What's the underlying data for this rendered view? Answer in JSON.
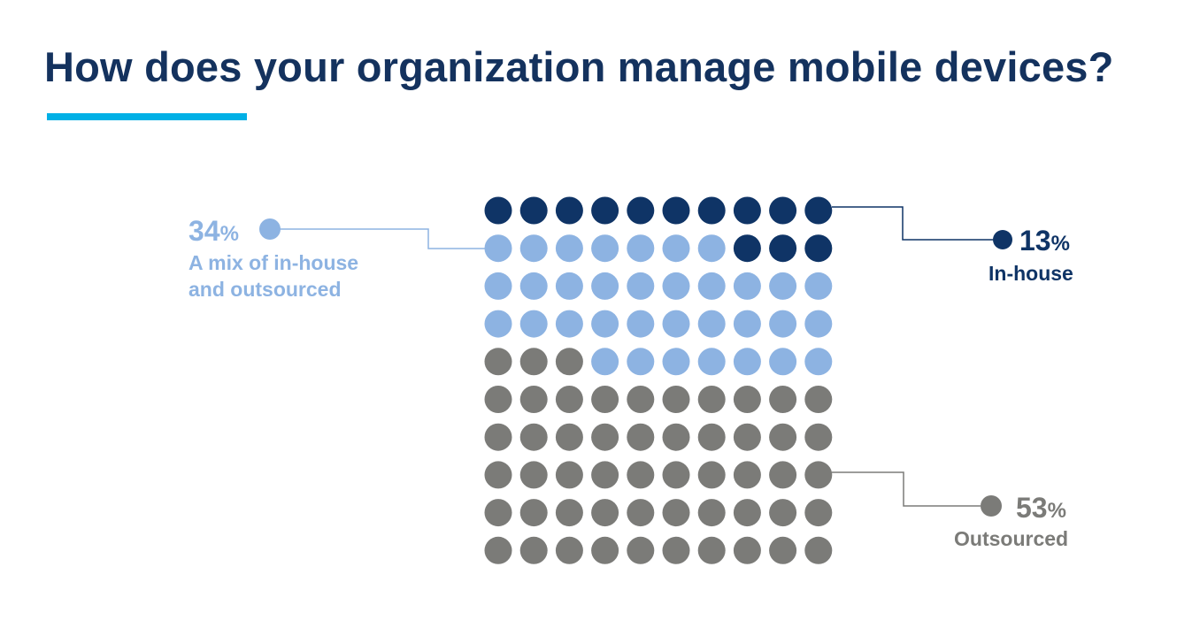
{
  "chart_data": {
    "type": "waffle",
    "title": "How does your organization manage mobile devices?",
    "grid": {
      "rows": 10,
      "cols": 10
    },
    "series": [
      {
        "name": "In-house",
        "value": 13,
        "label": "13",
        "unit": "%",
        "color": "#0f3466"
      },
      {
        "name": "A mix of in-house and outsourced",
        "value": 34,
        "label": "34",
        "unit": "%",
        "label_lines": [
          "A mix of in-house",
          "and outsourced"
        ],
        "color": "#8db3e2"
      },
      {
        "name": "Outsourced",
        "value": 53,
        "label": "53",
        "unit": "%",
        "color": "#7b7b78"
      }
    ],
    "fill_pattern": [
      [
        0,
        0,
        0,
        0,
        0,
        0,
        0,
        0,
        0,
        0
      ],
      [
        1,
        1,
        1,
        1,
        1,
        1,
        1,
        0,
        0,
        0
      ],
      [
        1,
        1,
        1,
        1,
        1,
        1,
        1,
        1,
        1,
        1
      ],
      [
        1,
        1,
        1,
        1,
        1,
        1,
        1,
        1,
        1,
        1
      ],
      [
        2,
        2,
        2,
        1,
        1,
        1,
        1,
        1,
        1,
        1
      ],
      [
        2,
        2,
        2,
        2,
        2,
        2,
        2,
        2,
        2,
        2
      ],
      [
        2,
        2,
        2,
        2,
        2,
        2,
        2,
        2,
        2,
        2
      ],
      [
        2,
        2,
        2,
        2,
        2,
        2,
        2,
        2,
        2,
        2
      ],
      [
        2,
        2,
        2,
        2,
        2,
        2,
        2,
        2,
        2,
        2
      ],
      [
        2,
        2,
        2,
        2,
        2,
        2,
        2,
        2,
        2,
        2
      ]
    ],
    "accent_color": "#00b0e6"
  }
}
